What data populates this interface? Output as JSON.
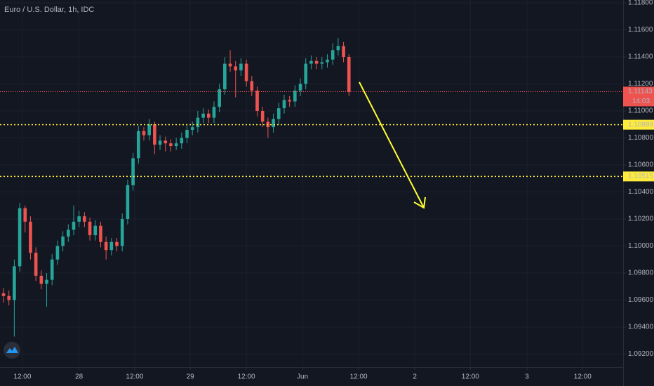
{
  "chart_data": {
    "type": "candlestick",
    "title": "Euro / U.S. Dollar, 1h, IDC",
    "up_color": "#26a69a",
    "down_color": "#ef5350",
    "open": [
      1.0965,
      1.0963,
      1.096,
      1.0985,
      1.1028,
      1.1018,
      1.0995,
      1.0978,
      1.0972,
      1.0975,
      1.099,
      1.1,
      1.1007,
      1.1012,
      1.1018,
      1.1022,
      1.1018,
      1.1008,
      1.1015,
      1.1003,
      1.0997,
      1.1003,
      1.1,
      1.102,
      1.1045,
      1.1065,
      1.1085,
      1.1082,
      1.109,
      1.1075,
      1.1078,
      1.1076,
      1.1074,
      1.1076,
      1.108,
      1.1086,
      1.1088,
      1.1095,
      1.1098,
      1.1095,
      1.1103,
      1.1116,
      1.1135,
      1.1133,
      1.113,
      1.1135,
      1.1122,
      1.1115,
      1.11,
      1.1092,
      1.1088,
      1.1094,
      1.1102,
      1.1108,
      1.1107,
      1.1115,
      1.112,
      1.1135,
      1.1137,
      1.1135,
      1.1136,
      1.1138,
      1.1145,
      1.1148,
      1.114
    ],
    "high": [
      1.0969,
      1.0967,
      1.099,
      1.1032,
      1.103,
      1.1022,
      1.0999,
      1.0982,
      1.098,
      1.0994,
      1.1004,
      1.1011,
      1.1016,
      1.103,
      1.1026,
      1.1025,
      1.1021,
      1.1019,
      1.1018,
      1.1007,
      1.1006,
      1.1006,
      1.1024,
      1.1049,
      1.1069,
      1.1089,
      1.1088,
      1.1094,
      1.1092,
      1.1082,
      1.1081,
      1.1079,
      1.108,
      1.1084,
      1.109,
      1.1092,
      1.11,
      1.1102,
      1.1101,
      1.1107,
      1.112,
      1.114,
      1.1145,
      1.1137,
      1.1139,
      1.1138,
      1.1126,
      1.1118,
      1.1103,
      1.1095,
      1.1098,
      1.1106,
      1.1112,
      1.1111,
      1.1119,
      1.1124,
      1.1139,
      1.1141,
      1.114,
      1.114,
      1.1142,
      1.115,
      1.1154,
      1.1151,
      1.1142
    ],
    "low": [
      1.0958,
      1.0956,
      1.0933,
      1.0981,
      1.101,
      1.099,
      1.0974,
      1.0968,
      1.0955,
      1.0971,
      1.0986,
      1.0996,
      1.1003,
      1.1008,
      1.1014,
      1.1014,
      1.1004,
      1.1004,
      1.0999,
      1.099,
      1.0993,
      1.0996,
      1.0996,
      1.1016,
      1.1041,
      1.1061,
      1.1078,
      1.1078,
      1.1068,
      1.1071,
      1.107,
      1.107,
      1.1071,
      1.1072,
      1.1076,
      1.1082,
      1.1084,
      1.1091,
      1.1091,
      1.1091,
      1.1099,
      1.1112,
      1.1129,
      1.111,
      1.1126,
      1.1118,
      1.1111,
      1.1096,
      1.1088,
      1.108,
      1.1084,
      1.109,
      1.1098,
      1.1103,
      1.1103,
      1.1111,
      1.1116,
      1.1131,
      1.1131,
      1.1131,
      1.1132,
      1.1134,
      1.1141,
      1.1136,
      1.1111
    ],
    "close": [
      1.0963,
      1.096,
      1.0985,
      1.1028,
      1.1018,
      1.0995,
      1.0978,
      1.0972,
      1.0975,
      1.099,
      1.1,
      1.1007,
      1.1012,
      1.1018,
      1.1022,
      1.1018,
      1.1008,
      1.1015,
      1.1003,
      1.0997,
      1.1003,
      1.1,
      1.102,
      1.1045,
      1.1065,
      1.1085,
      1.1082,
      1.109,
      1.1075,
      1.1078,
      1.1076,
      1.1074,
      1.1076,
      1.108,
      1.1086,
      1.1088,
      1.1095,
      1.1098,
      1.1095,
      1.1103,
      1.1116,
      1.1135,
      1.1133,
      1.113,
      1.1135,
      1.1122,
      1.1115,
      1.11,
      1.1092,
      1.1088,
      1.1094,
      1.1102,
      1.1108,
      1.1107,
      1.1115,
      1.112,
      1.1135,
      1.1137,
      1.1135,
      1.1136,
      1.1138,
      1.1145,
      1.1148,
      1.114,
      1.1114
    ],
    "xlim": [
      -0.65,
      114.8
    ],
    "xticks": [
      {
        "value": 3.5,
        "label": "12:00"
      },
      {
        "value": 14,
        "label": "28"
      },
      {
        "value": 24.3,
        "label": "12:00"
      },
      {
        "value": 34.6,
        "label": "29"
      },
      {
        "value": 45,
        "label": "12:00"
      },
      {
        "value": 55.4,
        "label": "Jun"
      },
      {
        "value": 65.8,
        "label": "12:00"
      },
      {
        "value": 76.2,
        "label": "2"
      },
      {
        "value": 86.5,
        "label": "12:00"
      },
      {
        "value": 97,
        "label": "3"
      },
      {
        "value": 107.3,
        "label": "12:00"
      }
    ],
    "ylim": [
      1.09104,
      1.11821
    ],
    "yticks": [
      {
        "value": 1.092,
        "label": "1.09200"
      },
      {
        "value": 1.094,
        "label": "1.09400"
      },
      {
        "value": 1.096,
        "label": "1.09600"
      },
      {
        "value": 1.098,
        "label": "1.09800"
      },
      {
        "value": 1.1,
        "label": "1.10000"
      },
      {
        "value": 1.102,
        "label": "1.10200"
      },
      {
        "value": 1.104,
        "label": "1.10400"
      },
      {
        "value": 1.106,
        "label": "1.10600"
      },
      {
        "value": 1.108,
        "label": "1.10800"
      },
      {
        "value": 1.11,
        "label": "1.11000"
      },
      {
        "value": 1.112,
        "label": "1.11200"
      },
      {
        "value": 1.114,
        "label": "1.11400"
      },
      {
        "value": 1.116,
        "label": "1.11600"
      },
      {
        "value": 1.118,
        "label": "1.11800"
      }
    ],
    "price_lines": [
      {
        "value": 1.11143,
        "color": "#ef5350",
        "text_color": "#ffffff",
        "countdown": "14:03"
      },
      {
        "value": 1.10898,
        "color": "#ffeb3b",
        "text_color": "#000000"
      },
      {
        "value": 1.10515,
        "color": "#ffeb3b",
        "text_color": "#000000"
      }
    ]
  }
}
